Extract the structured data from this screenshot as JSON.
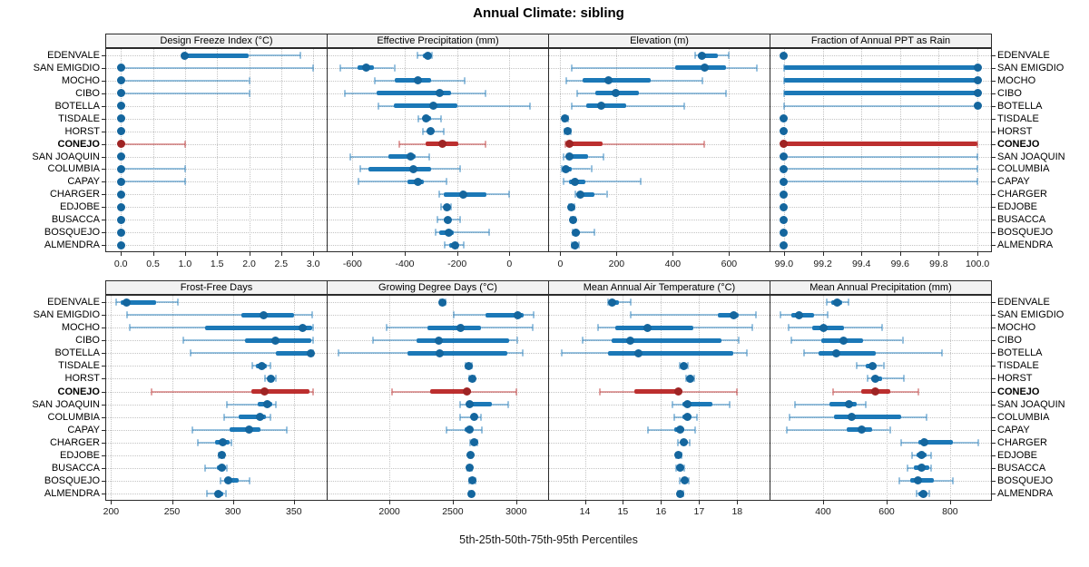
{
  "title": "Annual Climate: sibling",
  "footer": "5th-25th-50th-75th-95th Percentiles",
  "sites": [
    "EDENVALE",
    "SAN EMIGDIO",
    "MOCHO",
    "CIBO",
    "BOTELLA",
    "TISDALE",
    "HORST",
    "CONEJO",
    "SAN JOAQUIN",
    "COLUMBIA",
    "CAPAY",
    "CHARGER",
    "EDJOBE",
    "BUSACCA",
    "BOSQUEJO",
    "ALMENDRA"
  ],
  "highlight_site": "CONEJO",
  "colors": {
    "series": "#1b78b7",
    "series_dot": "#14669e",
    "series_light": "rgba(27,120,183,0.45)",
    "highlight": "#bc2f2f",
    "highlight_dot": "#9f2424",
    "highlight_light": "rgba(188,47,47,0.45)",
    "grid": "#c4c4c4",
    "header_bg": "#f2f2f2",
    "border": "#2b2b2b"
  },
  "chart_data": {
    "type": "scatter",
    "subtype": "trellis percentile dot plot; each row shows 5th-25th-50th-75th-95th percentiles per site; CONEJO highlighted",
    "grid": "dotted gridlines at x ticks and at each site row",
    "panels": [
      {
        "title": "Design Freeze Index (°C)",
        "grid_row": 0,
        "grid_col": 0,
        "xlim": [
          -0.23,
          3.21
        ],
        "ticks": [
          0,
          0.5,
          1,
          1.5,
          2,
          2.5,
          3
        ],
        "tick_labels": [
          "0.0",
          "0.5",
          "1.0",
          "1.5",
          "2.0",
          "2.5",
          "3.0"
        ],
        "values": [
          [
            1.0,
            1.0,
            1.0,
            2.0,
            2.8
          ],
          [
            0,
            0,
            0,
            0,
            3.0
          ],
          [
            0,
            0,
            0,
            0,
            2.0
          ],
          [
            0,
            0,
            0,
            0,
            2.0
          ],
          [
            0,
            0,
            0,
            0,
            0
          ],
          [
            0,
            0,
            0,
            0,
            0
          ],
          [
            0,
            0,
            0,
            0,
            0
          ],
          [
            0,
            0,
            0,
            0,
            1.0
          ],
          [
            0,
            0,
            0,
            0,
            0
          ],
          [
            0,
            0,
            0,
            0,
            1.0
          ],
          [
            0,
            0,
            0,
            0,
            1.0
          ],
          [
            0,
            0,
            0,
            0,
            0
          ],
          [
            0,
            0,
            0,
            0,
            0
          ],
          [
            0,
            0,
            0,
            0,
            0
          ],
          [
            0,
            0,
            0,
            0,
            0
          ],
          [
            0,
            0,
            0,
            0,
            0
          ]
        ]
      },
      {
        "title": "Effective Precipitation (mm)",
        "grid_row": 0,
        "grid_col": 1,
        "xlim": [
          -695,
          148
        ],
        "ticks": [
          -600,
          -400,
          -200,
          0
        ],
        "tick_labels": [
          "-600",
          "-400",
          "-200",
          "0"
        ],
        "values": [
          [
            -350,
            -332,
            -312,
            -301,
            -295
          ],
          [
            -645,
            -580,
            -548,
            -516,
            -440
          ],
          [
            -516,
            -440,
            -350,
            -298,
            -172
          ],
          [
            -630,
            -508,
            -268,
            -222,
            -92
          ],
          [
            -500,
            -441,
            -290,
            -198,
            78
          ],
          [
            -349,
            -330,
            -318,
            -300,
            -262
          ],
          [
            -331,
            -311,
            -303,
            -289,
            -250
          ],
          [
            -420,
            -320,
            -256,
            -196,
            -90
          ],
          [
            -610,
            -462,
            -379,
            -358,
            -308
          ],
          [
            -570,
            -538,
            -366,
            -300,
            -189
          ],
          [
            -578,
            -390,
            -349,
            -328,
            -240
          ],
          [
            -268,
            -250,
            -176,
            -88,
            0
          ],
          [
            -261,
            -250,
            -240,
            -231,
            -224
          ],
          [
            -276,
            -250,
            -236,
            -226,
            -190
          ],
          [
            -281,
            -268,
            -231,
            -214,
            -76
          ],
          [
            -246,
            -230,
            -209,
            -196,
            -174
          ]
        ]
      },
      {
        "title": "Elevation (m)",
        "grid_row": 0,
        "grid_col": 2,
        "xlim": [
          -40,
          744
        ],
        "ticks": [
          0,
          200,
          400,
          600
        ],
        "tick_labels": [
          "0",
          "200",
          "400",
          "600"
        ],
        "values": [
          [
            478,
            490,
            502,
            560,
            600
          ],
          [
            40,
            408,
            512,
            590,
            700
          ],
          [
            22,
            80,
            170,
            320,
            505
          ],
          [
            60,
            124,
            196,
            280,
            590
          ],
          [
            40,
            92,
            146,
            235,
            440
          ],
          [
            10,
            13,
            16,
            21,
            26
          ],
          [
            15,
            20,
            26,
            32,
            38
          ],
          [
            18,
            24,
            31,
            150,
            510
          ],
          [
            10,
            20,
            32,
            100,
            152
          ],
          [
            5,
            11,
            20,
            42,
            110
          ],
          [
            10,
            30,
            52,
            90,
            285
          ],
          [
            54,
            60,
            72,
            120,
            165
          ],
          [
            30,
            35,
            40,
            46,
            50
          ],
          [
            38,
            42,
            46,
            50,
            55
          ],
          [
            44,
            50,
            56,
            70,
            120
          ],
          [
            40,
            45,
            51,
            60,
            66
          ]
        ]
      },
      {
        "title": "Fraction of Annual PPT as Rain",
        "grid_row": 0,
        "grid_col": 3,
        "xlim": [
          98.93,
          100.07
        ],
        "ticks": [
          99,
          99.2,
          99.4,
          99.6,
          99.8,
          100
        ],
        "tick_labels": [
          "99.0",
          "99.2",
          "99.4",
          "99.6",
          "99.8",
          "100.0"
        ],
        "values": [
          [
            99,
            99,
            99,
            99,
            99
          ],
          [
            99,
            99,
            100,
            100,
            100
          ],
          [
            99,
            99,
            100,
            100,
            100
          ],
          [
            99,
            99,
            100,
            100,
            100
          ],
          [
            99,
            100,
            100,
            100,
            100
          ],
          [
            99,
            99,
            99,
            99,
            99
          ],
          [
            99,
            99,
            99,
            99,
            99
          ],
          [
            99,
            99,
            99,
            100,
            100
          ],
          [
            99,
            99,
            99,
            99,
            100
          ],
          [
            99,
            99,
            99,
            99,
            100
          ],
          [
            99,
            99,
            99,
            99,
            100
          ],
          [
            99,
            99,
            99,
            99,
            99
          ],
          [
            99,
            99,
            99,
            99,
            99
          ],
          [
            99,
            99,
            99,
            99,
            99
          ],
          [
            99,
            99,
            99,
            99,
            99
          ],
          [
            99,
            99,
            99,
            99,
            99
          ]
        ]
      },
      {
        "title": "Frost-Free Days",
        "grid_row": 1,
        "grid_col": 0,
        "xlim": [
          196,
          377
        ],
        "ticks": [
          200,
          250,
          300,
          350
        ],
        "tick_labels": [
          "200",
          "250",
          "300",
          "350"
        ],
        "values": [
          [
            204,
            208,
            213,
            237,
            255
          ],
          [
            213,
            307,
            325,
            350,
            365
          ],
          [
            215,
            277,
            357,
            365,
            366
          ],
          [
            259,
            310,
            335,
            364,
            366
          ],
          [
            265,
            335,
            364,
            366,
            366
          ],
          [
            316,
            319,
            324,
            328,
            331
          ],
          [
            326,
            329,
            331,
            333,
            335
          ],
          [
            233,
            315,
            326,
            363,
            366
          ],
          [
            295,
            320,
            328,
            332,
            335
          ],
          [
            293,
            305,
            322,
            327,
            331
          ],
          [
            267,
            297,
            313,
            323,
            344
          ],
          [
            271,
            285,
            292,
            297,
            299
          ],
          [
            288,
            290,
            291,
            292,
            293
          ],
          [
            277,
            287,
            291,
            294,
            295
          ],
          [
            290,
            293,
            296,
            305,
            314
          ],
          [
            279,
            285,
            288,
            292,
            294
          ]
        ]
      },
      {
        "title": "Growing Degree Days (°C)",
        "grid_row": 1,
        "grid_col": 1,
        "xlim": [
          1513,
          3252
        ],
        "ticks": [
          2000,
          2500,
          3000
        ],
        "tick_labels": [
          "2000",
          "2500",
          "3000"
        ],
        "values": [
          [
            2400,
            2410,
            2420,
            2432,
            2444
          ],
          [
            2510,
            2760,
            3010,
            3060,
            3140
          ],
          [
            1980,
            2300,
            2560,
            2720,
            3130
          ],
          [
            1870,
            2215,
            2390,
            2945,
            3005
          ],
          [
            1600,
            2140,
            2400,
            2930,
            3050
          ],
          [
            2600,
            2612,
            2622,
            2636,
            2648
          ],
          [
            2632,
            2642,
            2652,
            2662,
            2672
          ],
          [
            2020,
            2320,
            2610,
            2645,
            3000
          ],
          [
            2560,
            2605,
            2632,
            2810,
            2940
          ],
          [
            2560,
            2640,
            2665,
            2692,
            2722
          ],
          [
            2450,
            2590,
            2630,
            2652,
            2730
          ],
          [
            2638,
            2650,
            2665,
            2680,
            2692
          ],
          [
            2628,
            2636,
            2642,
            2648,
            2654
          ],
          [
            2618,
            2628,
            2636,
            2645,
            2652
          ],
          [
            2628,
            2644,
            2656,
            2670,
            2682
          ],
          [
            2628,
            2638,
            2646,
            2652,
            2660
          ]
        ]
      },
      {
        "title": "Mean Annual Air Temperature (°C)",
        "grid_row": 1,
        "grid_col": 2,
        "xlim": [
          13.06,
          18.85
        ],
        "ticks": [
          14,
          15,
          16,
          17,
          18
        ],
        "tick_labels": [
          "14",
          "15",
          "16",
          "17",
          "18"
        ],
        "values": [
          [
            14.6,
            14.65,
            14.72,
            14.9,
            15.2
          ],
          [
            15.2,
            17.5,
            17.9,
            18.05,
            18.5
          ],
          [
            14.35,
            14.8,
            15.65,
            16.85,
            18.4
          ],
          [
            13.95,
            14.7,
            15.2,
            17.6,
            18.05
          ],
          [
            13.4,
            14.6,
            15.4,
            17.9,
            18.25
          ],
          [
            16.5,
            16.55,
            16.6,
            16.66,
            16.7
          ],
          [
            16.65,
            16.7,
            16.76,
            16.82,
            16.86
          ],
          [
            14.4,
            15.3,
            16.45,
            16.56,
            18.0
          ],
          [
            16.3,
            16.55,
            16.7,
            17.35,
            17.8
          ],
          [
            16.35,
            16.55,
            16.7,
            16.8,
            16.95
          ],
          [
            15.65,
            16.35,
            16.5,
            16.6,
            16.9
          ],
          [
            16.45,
            16.52,
            16.6,
            16.7,
            16.75
          ],
          [
            16.4,
            16.43,
            16.46,
            16.5,
            16.53
          ],
          [
            16.4,
            16.45,
            16.5,
            16.56,
            16.6
          ],
          [
            16.5,
            16.56,
            16.62,
            16.68,
            16.73
          ],
          [
            16.44,
            16.47,
            16.5,
            16.55,
            16.58
          ]
        ]
      },
      {
        "title": "Mean Annual Precipitation (mm)",
        "grid_row": 1,
        "grid_col": 3,
        "xlim": [
          234,
          929
        ],
        "ticks": [
          400,
          600,
          800
        ],
        "tick_labels": [
          "400",
          "600",
          "800"
        ],
        "values": [
          [
            410,
            425,
            445,
            460,
            480
          ],
          [
            265,
            300,
            325,
            370,
            415
          ],
          [
            290,
            365,
            400,
            465,
            585
          ],
          [
            300,
            395,
            465,
            525,
            650
          ],
          [
            340,
            385,
            440,
            565,
            775
          ],
          [
            505,
            535,
            555,
            570,
            590
          ],
          [
            540,
            550,
            565,
            585,
            655
          ],
          [
            430,
            520,
            565,
            610,
            700
          ],
          [
            310,
            420,
            480,
            505,
            535
          ],
          [
            295,
            435,
            490,
            645,
            725
          ],
          [
            285,
            475,
            520,
            555,
            610
          ],
          [
            645,
            700,
            720,
            810,
            890
          ],
          [
            680,
            695,
            710,
            725,
            740
          ],
          [
            665,
            685,
            710,
            735,
            740
          ],
          [
            640,
            675,
            700,
            750,
            810
          ],
          [
            695,
            700,
            715,
            730,
            735
          ]
        ]
      }
    ]
  }
}
